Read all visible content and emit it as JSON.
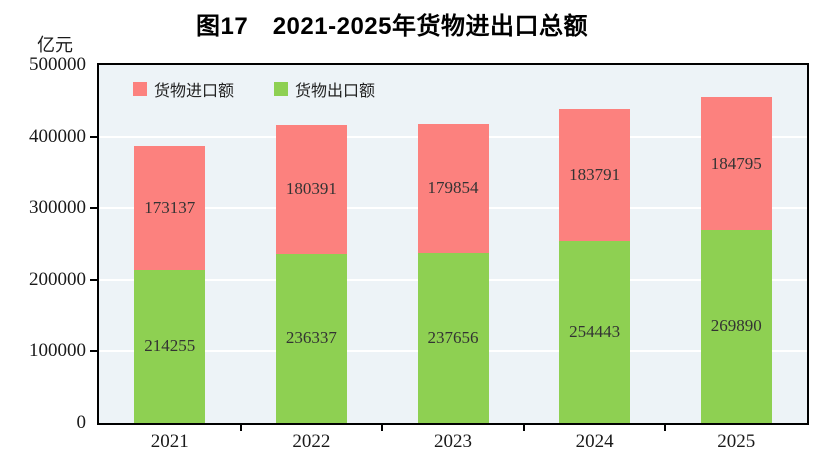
{
  "title": "图17　2021-2025年货物进出口总额",
  "y_unit_label": "亿元",
  "legend": {
    "items": [
      {
        "label": "货物进口额",
        "color": "#fc817e"
      },
      {
        "label": "货物出口额",
        "color": "#8ed052"
      }
    ]
  },
  "colors": {
    "import_red": "#fc817e",
    "export_green": "#8ed052",
    "plot_background": "#edf3f7",
    "gridline": "#ffffff",
    "axis": "#000000",
    "label_text": "#333333"
  },
  "chart_data": {
    "type": "bar",
    "stacked": true,
    "title": "图17　2021-2025年货物进出口总额",
    "xlabel": "",
    "ylabel": "亿元",
    "categories": [
      "2021",
      "2022",
      "2023",
      "2024",
      "2025"
    ],
    "series": [
      {
        "name": "货物出口额",
        "key": "export",
        "color": "#8ed052",
        "values": [
          214255,
          236337,
          237656,
          254443,
          269890
        ]
      },
      {
        "name": "货物进口额",
        "key": "import",
        "color": "#fc817e",
        "values": [
          173137,
          180391,
          179854,
          183791,
          184795
        ]
      }
    ],
    "totals": [
      387392,
      416728,
      417510,
      438234,
      454685
    ],
    "ylim": [
      0,
      500000
    ],
    "yticks": [
      0,
      100000,
      200000,
      300000,
      400000,
      500000
    ],
    "grid": true,
    "legend_position": "top-left-inside",
    "bar_value_labels": true
  }
}
